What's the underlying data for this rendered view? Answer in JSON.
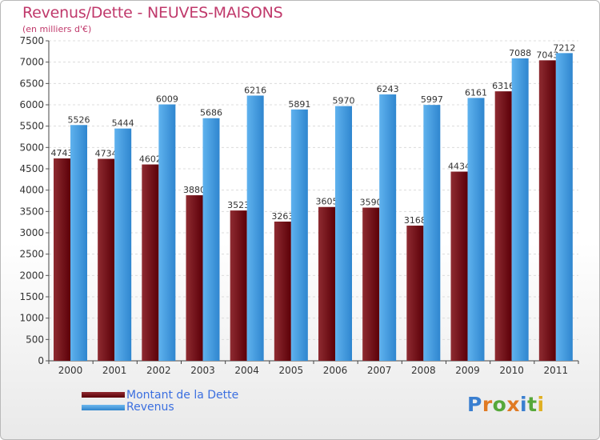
{
  "page": {
    "title": "Revenus/Dette - NEUVES-MAISONS",
    "subtitle": "(en milliers d'€)",
    "logo": "Proxiti"
  },
  "colors": {
    "dette": "#6b0a12",
    "revenus": "#3f9be0",
    "title": "#c0396b",
    "legend_text": "#3b6fe0"
  },
  "chart_data": {
    "type": "bar",
    "title": "Revenus/Dette - NEUVES-MAISONS",
    "subtitle": "(en milliers d'€)",
    "categories": [
      "2000",
      "2001",
      "2002",
      "2003",
      "2004",
      "2005",
      "2006",
      "2007",
      "2008",
      "2009",
      "2010",
      "2011"
    ],
    "series": [
      {
        "name": "Montant de la Dette",
        "values": [
          4743,
          4734,
          4602,
          3880,
          3523,
          3263,
          3605,
          3590,
          3168,
          4434,
          6316,
          7043
        ]
      },
      {
        "name": "Revenus",
        "values": [
          5526,
          5444,
          6009,
          5686,
          6216,
          5891,
          5970,
          6243,
          5997,
          6161,
          7088,
          7212
        ]
      }
    ],
    "ylim": [
      0,
      7500
    ],
    "yticks": [
      0,
      500,
      1000,
      1500,
      2000,
      2500,
      3000,
      3500,
      4000,
      4500,
      5000,
      5500,
      6000,
      6500,
      7000,
      7500
    ],
    "grid": true,
    "legend_position": "bottom-left"
  }
}
